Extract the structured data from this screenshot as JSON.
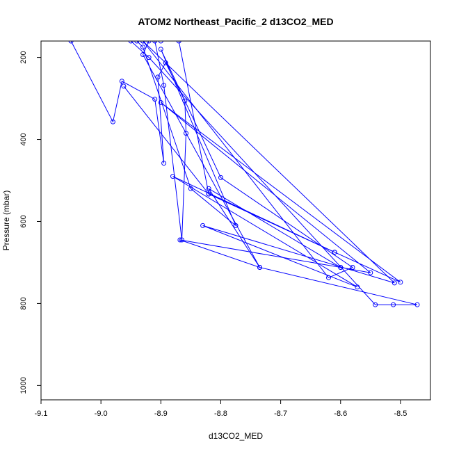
{
  "chart_data": {
    "type": "line",
    "title": "ATOM2 Northeast_Pacific_2 d13CO2_MED",
    "xlabel": "d13CO2_MED",
    "ylabel": "Pressure (mbar)",
    "xlim": [
      -9.1,
      -8.45
    ],
    "ylim": [
      1035,
      160
    ],
    "y_reversed": true,
    "xticks": [
      -9.1,
      -9.0,
      -8.9,
      -8.8,
      -8.7,
      -8.6,
      -8.5
    ],
    "xtick_labels": [
      "-9.1",
      "-9.0",
      "-8.9",
      "-8.8",
      "-8.7",
      "-8.6",
      "-8.5"
    ],
    "yticks": [
      200,
      400,
      600,
      800,
      1000
    ],
    "ytick_labels": [
      "200",
      "400",
      "600",
      "800",
      "1000"
    ],
    "grid": false,
    "legend": "none",
    "color": "#0000ff",
    "series": [
      {
        "x": [
          -9.05,
          -8.98,
          -8.965,
          -8.91,
          -8.895,
          -8.905,
          -8.892,
          -8.86,
          -8.858,
          -8.865,
          -8.895,
          -8.91
        ],
        "y": [
          160,
          357,
          258,
          302,
          458,
          248,
          213,
          306,
          385,
          645,
          268,
          160
        ]
      },
      {
        "x": [
          -8.962,
          -8.82,
          -8.61,
          -8.5,
          -8.9,
          -8.55,
          -8.6,
          -8.82,
          -8.735,
          -8.93,
          -8.92,
          -8.9
        ],
        "y": [
          270,
          533,
          675,
          748,
          310,
          725,
          712,
          520,
          712,
          193,
          160,
          160
        ]
      },
      {
        "x": [
          -8.94,
          -8.93,
          -8.85,
          -8.775,
          -8.9,
          -8.8,
          -8.58,
          -8.62,
          -8.93
        ],
        "y": [
          160,
          175,
          520,
          610,
          180,
          493,
          712,
          737,
          160
        ]
      },
      {
        "x": [
          -8.87,
          -8.82,
          -8.61,
          -8.88,
          -8.572,
          -8.83,
          -8.51,
          -8.93
        ],
        "y": [
          160,
          533,
          675,
          490,
          760,
          610,
          750,
          160
        ]
      },
      {
        "x": [
          -8.95,
          -8.92,
          -8.542,
          -8.512,
          -8.472,
          -8.735,
          -8.868,
          -8.6
        ],
        "y": [
          160,
          200,
          803,
          803,
          803,
          712,
          645,
          712
        ]
      }
    ]
  }
}
